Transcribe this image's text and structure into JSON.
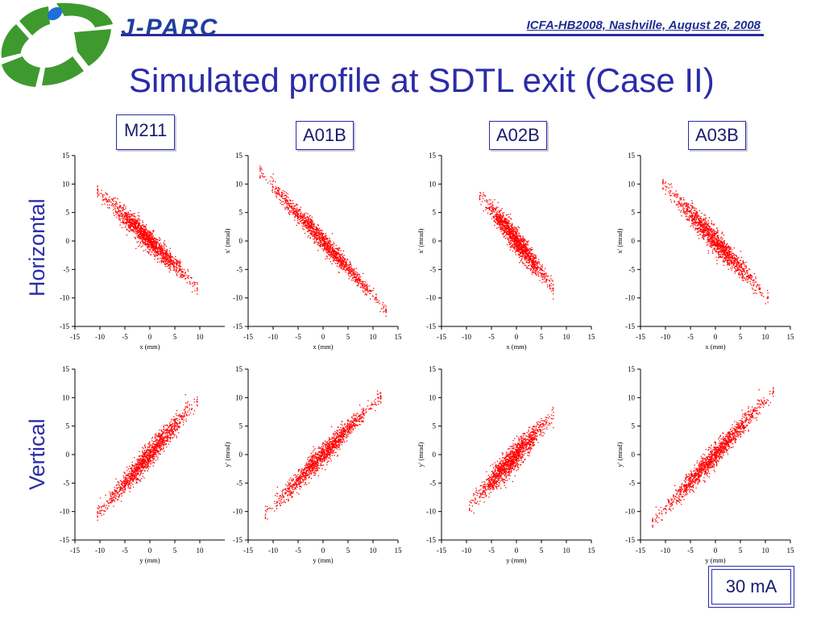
{
  "header": {
    "logo_text": "J-PARC",
    "conference": "ICFA-HB2008, Nashville, August 26, 2008",
    "title": "Simulated profile at SDTL exit (Case II)"
  },
  "row_labels": {
    "horizontal": "Horizontal",
    "vertical": "Vertical"
  },
  "current": "30 mA",
  "colors": {
    "points": "#ff0000",
    "title": "#2b2ba8",
    "logo_green": "#3e9a2e",
    "logo_blue": "#1f3f9e"
  },
  "chart_data": [
    {
      "type": "scatter",
      "label": "M211",
      "row": "horizontal",
      "xlabel": "x (mm)",
      "ylabel": "",
      "xlim": [
        -15,
        15
      ],
      "ylim": [
        -15,
        15
      ],
      "xticks": [
        -15,
        -10,
        -5,
        0,
        5,
        10
      ],
      "yticks": [
        -15,
        -10,
        -5,
        0,
        5,
        10,
        15
      ],
      "points_cloud": {
        "slope": -0.85,
        "x_min": -10,
        "x_max": 9,
        "spread": 1.0
      }
    },
    {
      "type": "scatter",
      "label": "A01B",
      "row": "horizontal",
      "xlabel": "x (mm)",
      "ylabel": "x' (mrad)",
      "xlim": [
        -15,
        15
      ],
      "ylim": [
        -15,
        15
      ],
      "xticks": [
        -15,
        -10,
        -5,
        0,
        5,
        10,
        15
      ],
      "yticks": [
        -15,
        -10,
        -5,
        0,
        5,
        10,
        15
      ],
      "points_cloud": {
        "slope": -0.95,
        "x_min": -12,
        "x_max": 12,
        "spread": 0.9
      }
    },
    {
      "type": "scatter",
      "label": "A02B",
      "row": "horizontal",
      "xlabel": "x (mm)",
      "ylabel": "x' (mrad)",
      "xlim": [
        -15,
        15
      ],
      "ylim": [
        -15,
        15
      ],
      "xticks": [
        -15,
        -10,
        -5,
        0,
        5,
        10,
        15
      ],
      "yticks": [
        -15,
        -10,
        -5,
        0,
        5,
        10,
        15
      ],
      "points_cloud": {
        "slope": -1.1,
        "x_min": -7,
        "x_max": 7,
        "spread": 1.1
      }
    },
    {
      "type": "scatter",
      "label": "A03B",
      "row": "horizontal",
      "xlabel": "x (mm)",
      "ylabel": "x' (mrad)",
      "xlim": [
        -15,
        15
      ],
      "ylim": [
        -15,
        15
      ],
      "xticks": [
        -15,
        -10,
        -5,
        0,
        5,
        10,
        15
      ],
      "yticks": [
        -15,
        -10,
        -5,
        0,
        5,
        10,
        15
      ],
      "points_cloud": {
        "slope": -0.95,
        "x_min": -10,
        "x_max": 10,
        "spread": 1.1
      }
    },
    {
      "type": "scatter",
      "row": "vertical",
      "xlabel": "y (mm)",
      "ylabel": "",
      "xlim": [
        -15,
        15
      ],
      "ylim": [
        -15,
        15
      ],
      "xticks": [
        -15,
        -10,
        -5,
        0,
        5,
        10
      ],
      "yticks": [
        -15,
        -10,
        -5,
        0,
        5,
        10,
        15
      ],
      "points_cloud": {
        "slope": 1.0,
        "x_min": -10,
        "x_max": 9,
        "spread": 1.1
      }
    },
    {
      "type": "scatter",
      "row": "vertical",
      "xlabel": "y (mm)",
      "ylabel": "y' (mrad)",
      "xlim": [
        -15,
        15
      ],
      "ylim": [
        -15,
        15
      ],
      "xticks": [
        -15,
        -10,
        -5,
        0,
        5,
        10,
        15
      ],
      "yticks": [
        -15,
        -10,
        -5,
        0,
        5,
        10,
        15
      ],
      "points_cloud": {
        "slope": 0.9,
        "x_min": -11,
        "x_max": 11,
        "spread": 1.0
      }
    },
    {
      "type": "scatter",
      "row": "vertical",
      "xlabel": "y (mm)",
      "ylabel": "y' (mrad)",
      "xlim": [
        -15,
        15
      ],
      "ylim": [
        -15,
        15
      ],
      "xticks": [
        -15,
        -10,
        -5,
        0,
        5,
        10,
        15
      ],
      "yticks": [
        -15,
        -10,
        -5,
        0,
        5,
        10,
        15
      ],
      "points_cloud": {
        "slope": 0.95,
        "x_min": -9,
        "x_max": 7,
        "spread": 1.2
      }
    },
    {
      "type": "scatter",
      "row": "vertical",
      "xlabel": "y (mm)",
      "ylabel": "y' (mrad)",
      "xlim": [
        -15,
        15
      ],
      "ylim": [
        -15,
        15
      ],
      "xticks": [
        -15,
        -10,
        -5,
        0,
        5,
        10,
        15
      ],
      "yticks": [
        -15,
        -10,
        -5,
        0,
        5,
        10,
        15
      ],
      "points_cloud": {
        "slope": 0.95,
        "x_min": -12,
        "x_max": 11,
        "spread": 1.0
      }
    }
  ]
}
